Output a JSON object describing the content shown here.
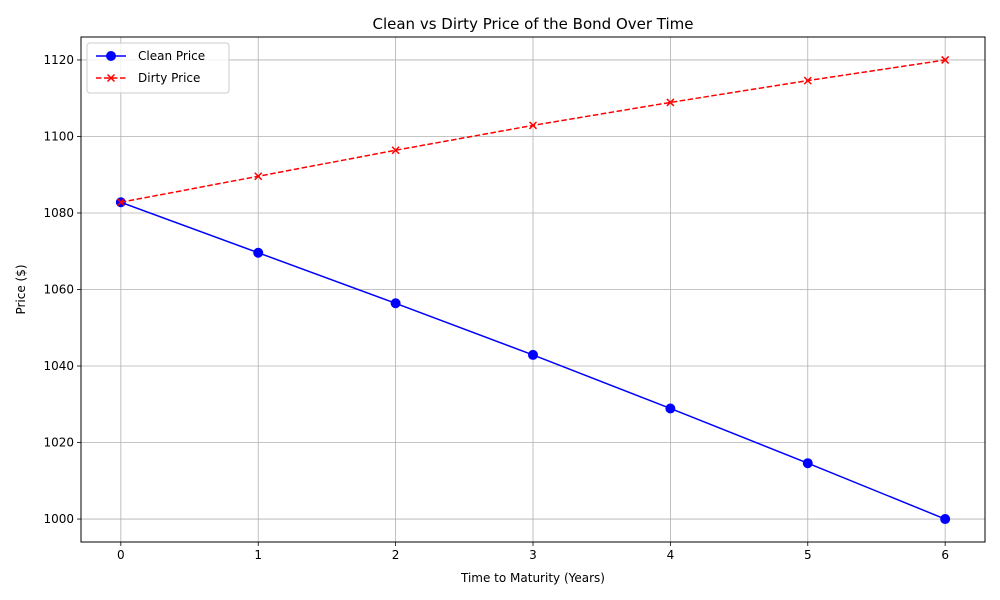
{
  "chart_data": {
    "type": "line",
    "title": "Clean vs Dirty Price of the Bond Over Time",
    "xlabel": "Time to Maturity (Years)",
    "ylabel": "Price ($)",
    "x": [
      0,
      1,
      2,
      3,
      4,
      5,
      6
    ],
    "xlim": [
      -0.29,
      6.29
    ],
    "ylim": [
      994,
      1126
    ],
    "xticks": [
      0,
      1,
      2,
      3,
      4,
      5,
      6
    ],
    "yticks": [
      1000,
      1020,
      1040,
      1060,
      1080,
      1100,
      1120
    ],
    "grid": true,
    "legend_position": "top-left",
    "series": [
      {
        "name": "Clean Price",
        "values": [
          1082.8,
          1069.6,
          1056.4,
          1042.9,
          1028.9,
          1014.6,
          1000.0
        ],
        "color": "#0000ff",
        "line_style": "solid",
        "marker": "circle"
      },
      {
        "name": "Dirty Price",
        "values": [
          1082.8,
          1089.6,
          1096.4,
          1102.9,
          1108.9,
          1114.6,
          1120.0
        ],
        "color": "#ff0000",
        "line_style": "dashed",
        "marker": "x"
      }
    ]
  }
}
